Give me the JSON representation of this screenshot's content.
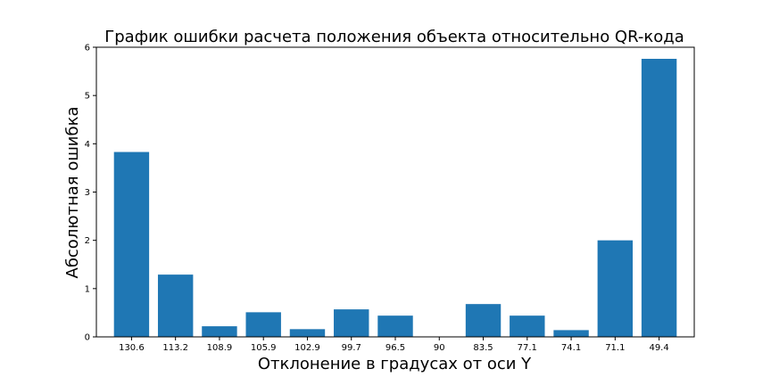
{
  "chart_data": {
    "type": "bar",
    "title": "График ошибки расчета положения объекта относительно QR-кода",
    "xlabel": "Отклонение в градусах от оси Y",
    "ylabel": "Абсолютная ошибка",
    "categories": [
      "130.6",
      "113.2",
      "108.9",
      "105.9",
      "102.9",
      "99.7",
      "96.5",
      "90",
      "83.5",
      "77.1",
      "74.1",
      "71.1",
      "49.4"
    ],
    "values": [
      3.83,
      1.29,
      0.22,
      0.51,
      0.16,
      0.57,
      0.44,
      0.0,
      0.68,
      0.44,
      0.14,
      2.0,
      5.76
    ],
    "ylim": [
      0,
      6
    ],
    "yticks": [
      "0",
      "1",
      "2",
      "3",
      "4",
      "5",
      "6"
    ],
    "grid": false,
    "legend": "none",
    "colors": {
      "bar": "#1f77b4"
    }
  }
}
